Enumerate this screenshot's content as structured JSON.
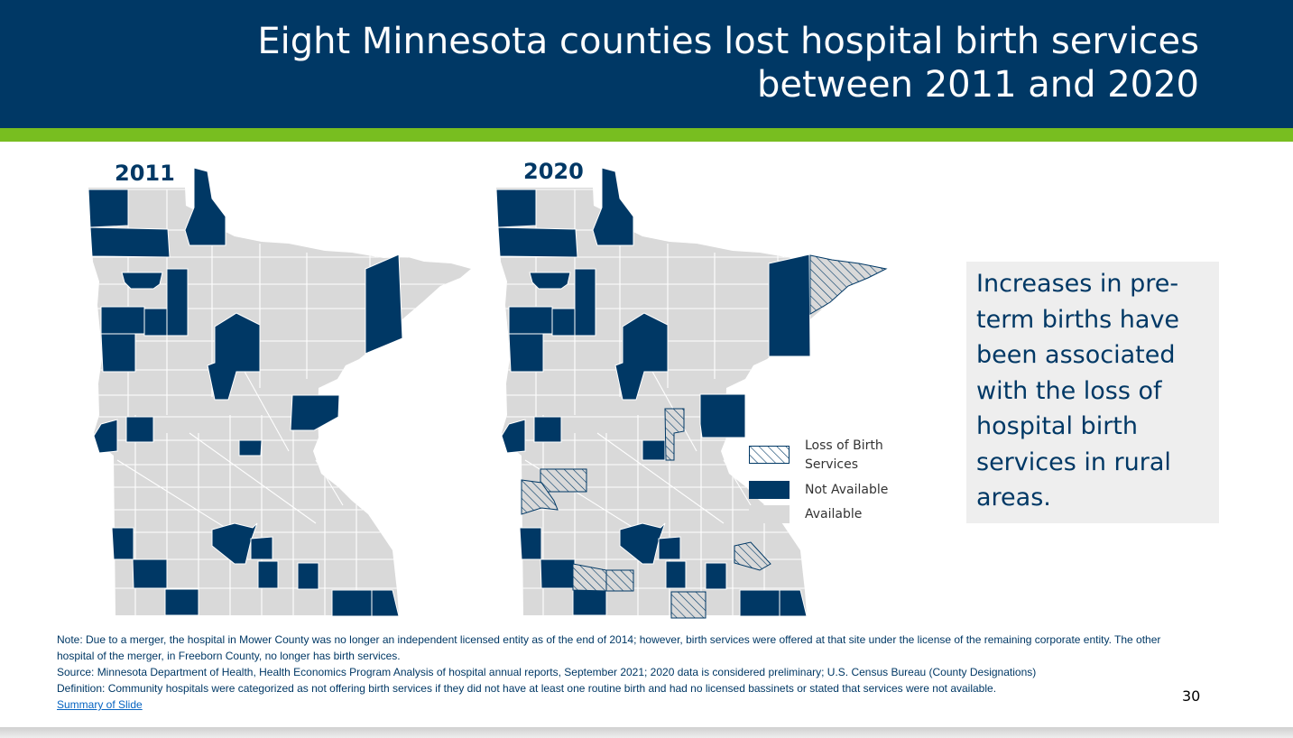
{
  "title": "Eight Minnesota counties lost hospital birth services between 2011 and 2020",
  "colors": {
    "header": "#003865",
    "accent_bar": "#78BE20",
    "not_available": "#003865",
    "available": "#D9D9D9",
    "county_border": "#ffffff",
    "hatch": "#003865"
  },
  "maps": [
    {
      "label": "2011"
    },
    {
      "label": "2020"
    }
  ],
  "legend": {
    "loss": "Loss of Birth Services",
    "loss_line1": "Loss of Birth",
    "loss_line2": "Services",
    "not_available": "Not Available",
    "available": "Available"
  },
  "callout": "Increases in pre-term births have been associated with the loss of hospital birth services in rural areas.",
  "notes": {
    "note": "Note: Due to a merger, the hospital in Mower County was no longer an independent licensed entity as of the end of 2014; however, birth services were offered at that site under the license of the remaining corporate entity. The other hospital of the merger, in Freeborn County, no longer has birth services.",
    "source": "Source: Minnesota Department of Health, Health Economics Program Analysis of hospital annual reports, September 2021; 2020 data is considered preliminary; U.S. Census Bureau (County Designations)",
    "definition": "Definition: Community hospitals were categorized as not offering birth services if they did not have at least one routine birth and had no licensed bassinets or stated that services were not available.",
    "summary_link": "Summary of Slide"
  },
  "page_number": "30"
}
